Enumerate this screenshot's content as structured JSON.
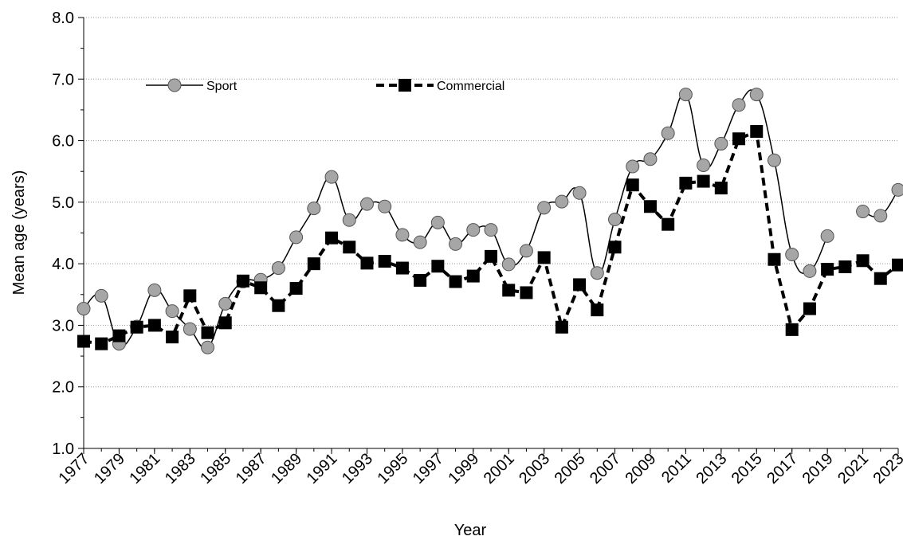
{
  "chart_data": {
    "type": "line",
    "x_label": "Year",
    "y_label": "Mean age (years)",
    "x": [
      1977,
      1978,
      1979,
      1980,
      1981,
      1982,
      1983,
      1984,
      1985,
      1986,
      1987,
      1988,
      1989,
      1990,
      1991,
      1992,
      1993,
      1994,
      1995,
      1996,
      1997,
      1998,
      1999,
      2000,
      2001,
      2002,
      2003,
      2004,
      2005,
      2006,
      2007,
      2008,
      2009,
      2010,
      2011,
      2012,
      2013,
      2014,
      2015,
      2016,
      2017,
      2018,
      2019,
      2020,
      2021,
      2022,
      2023
    ],
    "series": [
      {
        "name": "Sport",
        "color": "#000000",
        "marker": "circle",
        "marker_color": "#a6a6a6",
        "dashed": false,
        "smooth": true,
        "values": [
          3.27,
          3.48,
          2.7,
          2.98,
          3.57,
          3.23,
          2.94,
          2.64,
          3.35,
          3.71,
          3.74,
          3.93,
          4.43,
          4.9,
          5.41,
          4.71,
          4.97,
          4.93,
          4.47,
          4.35,
          4.67,
          4.32,
          4.55,
          4.55,
          3.99,
          4.21,
          4.91,
          5.01,
          5.15,
          3.85,
          4.72,
          5.58,
          5.7,
          6.12,
          6.75,
          5.6,
          5.95,
          6.58,
          6.75,
          5.68,
          4.15,
          3.88,
          4.45,
          null,
          4.85,
          4.78,
          5.2
        ]
      },
      {
        "name": "Commercial",
        "color": "#000000",
        "marker": "square",
        "marker_color": "#000000",
        "dashed": true,
        "smooth": false,
        "values": [
          2.74,
          2.7,
          2.83,
          2.97,
          3.0,
          2.81,
          3.48,
          2.88,
          3.04,
          3.72,
          3.61,
          3.32,
          3.6,
          4.0,
          4.42,
          4.27,
          4.01,
          4.04,
          3.93,
          3.73,
          3.96,
          3.71,
          3.8,
          4.12,
          3.57,
          3.53,
          4.1,
          2.97,
          3.66,
          3.25,
          4.27,
          5.28,
          4.93,
          4.64,
          5.31,
          5.34,
          5.23,
          6.03,
          6.15,
          4.07,
          2.93,
          3.27,
          3.91,
          3.95,
          4.05,
          3.76,
          3.98
        ]
      }
    ],
    "xlim": [
      1977,
      2023
    ],
    "xticks": [
      1977,
      1979,
      1981,
      1983,
      1985,
      1987,
      1989,
      1991,
      1993,
      1995,
      1997,
      1999,
      2001,
      2003,
      2005,
      2007,
      2009,
      2011,
      2013,
      2015,
      2017,
      2019,
      2021,
      2023
    ],
    "ylim": [
      1,
      8
    ],
    "yticks": [
      {
        "value": 1,
        "label": "1.0"
      },
      {
        "value": 2,
        "label": "2.0"
      },
      {
        "value": 3,
        "label": "3.0"
      },
      {
        "value": 4,
        "label": "4.0"
      },
      {
        "value": 5,
        "label": "5.0"
      },
      {
        "value": 6,
        "label": "6.0"
      },
      {
        "value": 7,
        "label": "7.0"
      },
      {
        "value": 8,
        "label": "8.0"
      }
    ],
    "grid": true,
    "legend": "top"
  }
}
